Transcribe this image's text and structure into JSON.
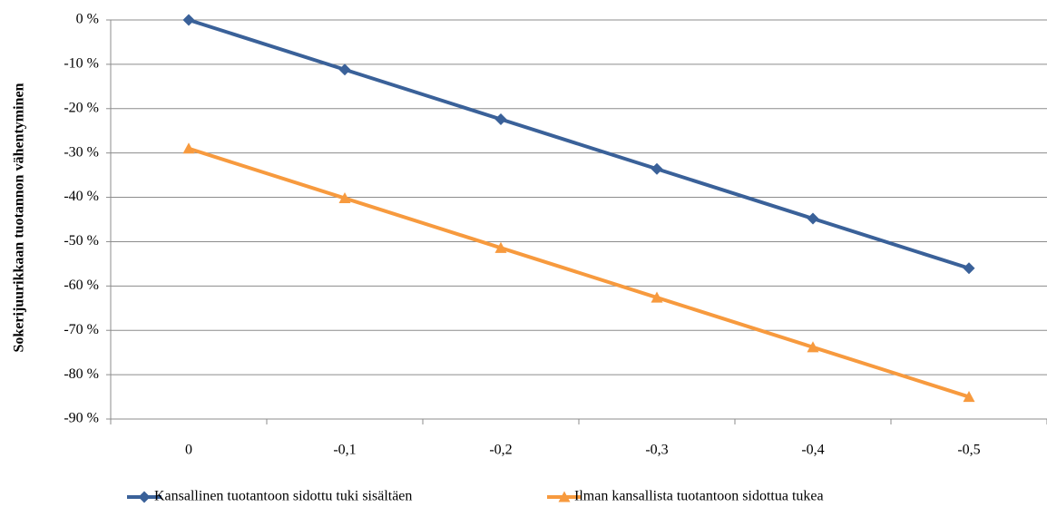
{
  "chart_data": {
    "type": "line",
    "categories": [
      "0",
      "-0,1",
      "-0,2",
      "-0,3",
      "-0,4",
      "-0,5"
    ],
    "series": [
      {
        "name": "Kansallinen tuotantoon sidottu tuki sisältäen",
        "color": "#3A6199",
        "marker": "diamond",
        "values": [
          0,
          -11.2,
          -22.4,
          -33.6,
          -44.8,
          -56
        ]
      },
      {
        "name": "Ilman kansallista tuotantoon sidottua tukea",
        "color": "#F79A3E",
        "marker": "triangle",
        "values": [
          -29,
          -40.2,
          -51.4,
          -62.6,
          -73.8,
          -85
        ]
      }
    ],
    "ylabel": "Sokerijuurikkaan tuotannon vähentyminen",
    "xlabel": "",
    "ylim": [
      -90,
      0
    ],
    "yticks": [
      "0 %",
      "-10 %",
      "-20 %",
      "-30 %",
      "-40 %",
      "-50 %",
      "-60 %",
      "-70 %",
      "-80 %",
      "-90 %"
    ],
    "grid": "horizontal",
    "legend_position": "bottom"
  }
}
